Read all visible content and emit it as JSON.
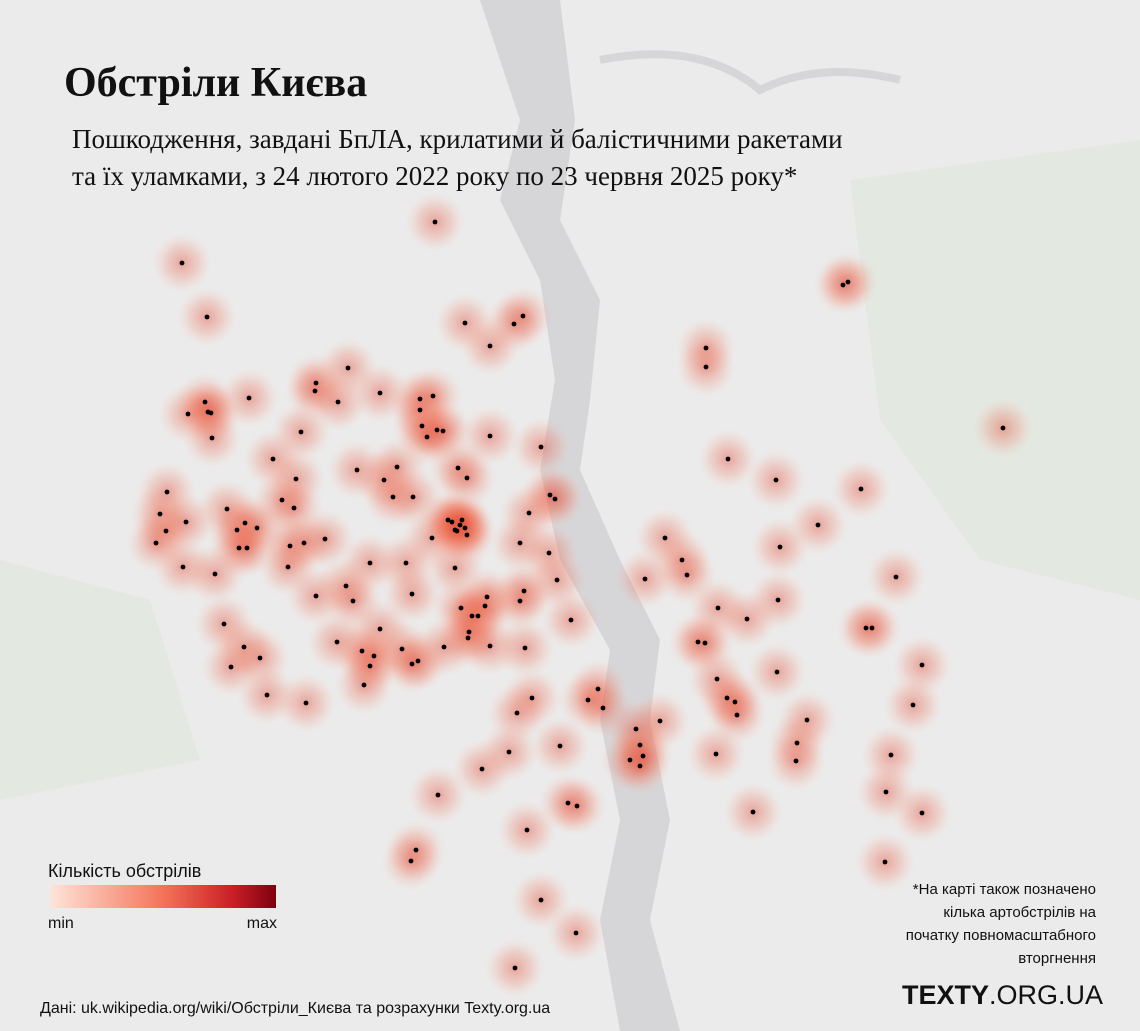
{
  "title": "Обстріли Києва",
  "subtitle": [
    "Пошкодження, завдані БпЛА, крилатими й балістичними ракетами",
    "та їх уламками, з 24 лютого 2022 року по 23 червня 2025 року*"
  ],
  "legend": {
    "title": "Кількість обстрілів",
    "min": "min",
    "max": "max"
  },
  "footnote": [
    "*На карті також позначено",
    "кілька артобстрілів на",
    "початку повномасштабного",
    "вторгнення"
  ],
  "source": "Дані: uk.wikipedia.org/wiki/Обстріли_Києва та розрахунки Texty.org.ua",
  "logo": {
    "bold": "TEXTY",
    "light": ".ORG.UA"
  }
}
